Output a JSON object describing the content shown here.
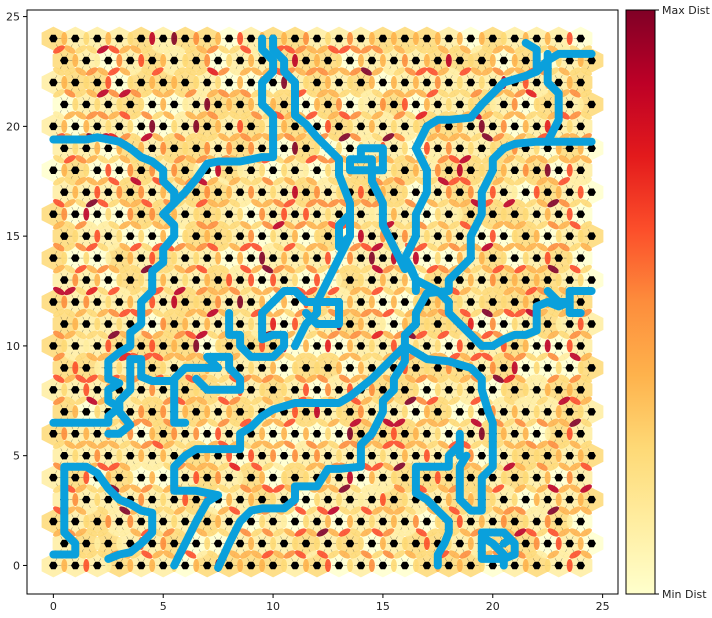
{
  "chart_data": {
    "type": "heatmap",
    "title": "",
    "xlabel": "",
    "ylabel": "",
    "xlim": [
      -1.2,
      25.7
    ],
    "ylim": [
      -1.3,
      25.3
    ],
    "xticks": [
      0,
      5,
      10,
      15,
      20,
      25
    ],
    "yticks": [
      0,
      5,
      10,
      15,
      20,
      25
    ],
    "grid": false,
    "colorbar": {
      "max_label": "Max Dist",
      "min_label": "Min Dist",
      "colormap": [
        "#ffffcc",
        "#ffeda0",
        "#fed976",
        "#feb24c",
        "#fd8d3c",
        "#fc4e2a",
        "#e31a1c",
        "#bd0026",
        "#800026"
      ]
    },
    "lattice": {
      "rows": 25,
      "cols": 26,
      "row_spacing": 1.0,
      "col_spacing": 1.0,
      "odd_row_offset": 0.5,
      "node_color": "#000000",
      "edge_color": "#222222"
    },
    "river_color": "#0aa0dc",
    "rivers": [
      [
        [
          0,
          19.4
        ],
        [
          1,
          19.4
        ],
        [
          1.5,
          19.4
        ],
        [
          2,
          19.5
        ],
        [
          2.5,
          19.4
        ],
        [
          3,
          19.3
        ],
        [
          3.5,
          19
        ],
        [
          4,
          18.6
        ],
        [
          4.5,
          18.4
        ],
        [
          5,
          18
        ],
        [
          5,
          17.5
        ],
        [
          5.5,
          17
        ],
        [
          5.5,
          16.5
        ],
        [
          5,
          16
        ],
        [
          5.5,
          15.5
        ],
        [
          5.5,
          15
        ],
        [
          5,
          14.4
        ],
        [
          5,
          13.8
        ],
        [
          4.5,
          13.4
        ],
        [
          4.5,
          12.5
        ],
        [
          4,
          12
        ],
        [
          4,
          11.5
        ],
        [
          4,
          11
        ],
        [
          3.5,
          10.6
        ],
        [
          3.5,
          10
        ],
        [
          3,
          9.7
        ],
        [
          2.5,
          9.3
        ],
        [
          2.5,
          8.5
        ],
        [
          3,
          8.3
        ],
        [
          2.5,
          8
        ],
        [
          2.5,
          7.5
        ],
        [
          3,
          7.2
        ],
        [
          2.5,
          6.8
        ],
        [
          2.5,
          6.5
        ],
        [
          1.5,
          6.5
        ],
        [
          1,
          6.5
        ],
        [
          0,
          6.5
        ]
      ],
      [
        [
          5.5,
          16.5
        ],
        [
          6,
          17
        ],
        [
          6.5,
          17.6
        ],
        [
          7,
          18.3
        ],
        [
          7.5,
          18.4
        ],
        [
          8.5,
          18.4
        ],
        [
          9.5,
          18.6
        ],
        [
          10,
          18.6
        ],
        [
          10,
          19
        ],
        [
          10,
          19.8
        ],
        [
          10,
          20.5
        ],
        [
          9.5,
          21
        ],
        [
          9.5,
          22
        ],
        [
          10,
          22.5
        ],
        [
          10,
          23
        ],
        [
          9.5,
          23.5
        ],
        [
          9.5,
          24
        ]
      ],
      [
        [
          2.5,
          6
        ],
        [
          3,
          6
        ],
        [
          3.5,
          6.4
        ],
        [
          3,
          7
        ],
        [
          3,
          7.5
        ],
        [
          3.5,
          8
        ],
        [
          3.5,
          8.6
        ],
        [
          3.5,
          9.4
        ],
        [
          4,
          9.4
        ],
        [
          4,
          8.6
        ],
        [
          4.5,
          8.4
        ],
        [
          5,
          8.4
        ],
        [
          5.5,
          8.4
        ],
        [
          5.5,
          7.5
        ],
        [
          5.5,
          7
        ],
        [
          5.5,
          6.5
        ],
        [
          6,
          6.5
        ]
      ],
      [
        [
          5.5,
          8.5
        ],
        [
          6,
          9
        ],
        [
          6.5,
          9
        ],
        [
          7,
          9
        ],
        [
          7.5,
          9
        ],
        [
          7,
          9.5
        ],
        [
          8,
          9.5
        ],
        [
          8,
          9
        ],
        [
          8.5,
          8.5
        ],
        [
          8.5,
          8
        ],
        [
          7.5,
          8
        ],
        [
          7,
          8
        ],
        [
          6.5,
          8.5
        ]
      ],
      [
        [
          0,
          0.5
        ],
        [
          1,
          0.5
        ],
        [
          1,
          1
        ],
        [
          0.5,
          1.5
        ],
        [
          0.5,
          2
        ],
        [
          0.5,
          3
        ],
        [
          0.5,
          3.5
        ],
        [
          0.5,
          4
        ],
        [
          0.5,
          4.5
        ],
        [
          1,
          4.5
        ],
        [
          1.5,
          4.5
        ],
        [
          2,
          4.2
        ],
        [
          2.5,
          3.5
        ],
        [
          3,
          3
        ],
        [
          3.5,
          2.8
        ],
        [
          4,
          2.5
        ],
        [
          4.5,
          2.4
        ],
        [
          4.5,
          1.5
        ],
        [
          4,
          1
        ],
        [
          3.5,
          0.6
        ],
        [
          3,
          0.5
        ],
        [
          2.5,
          0.3
        ]
      ],
      [
        [
          5.5,
          0
        ],
        [
          6,
          1
        ],
        [
          6.5,
          2
        ],
        [
          7,
          2.9
        ],
        [
          7.5,
          3.2
        ],
        [
          6.5,
          3.4
        ],
        [
          5.5,
          3.4
        ],
        [
          5.5,
          4
        ],
        [
          5.5,
          4.5
        ],
        [
          6,
          5
        ],
        [
          6.5,
          5.3
        ],
        [
          7.5,
          5.3
        ],
        [
          8.5,
          5.3
        ],
        [
          8.5,
          6
        ],
        [
          9,
          6.3
        ],
        [
          9.5,
          6.8
        ],
        [
          10,
          7.1
        ],
        [
          11,
          7.4
        ],
        [
          12,
          7.4
        ],
        [
          13,
          7.4
        ],
        [
          13.5,
          7.7
        ],
        [
          14,
          8.1
        ],
        [
          14.5,
          8.5
        ],
        [
          15,
          9
        ],
        [
          15.5,
          9.5
        ],
        [
          16,
          10
        ],
        [
          16,
          10.5
        ],
        [
          16.5,
          11
        ],
        [
          16.5,
          11.5
        ],
        [
          17,
          12.4
        ],
        [
          18,
          12.5
        ],
        [
          18,
          13
        ],
        [
          18.5,
          13.5
        ],
        [
          19,
          14
        ],
        [
          19,
          15
        ],
        [
          19.5,
          16
        ],
        [
          19.5,
          17
        ],
        [
          20,
          18
        ],
        [
          20,
          18.5
        ],
        [
          20.5,
          19
        ],
        [
          21,
          19.2
        ],
        [
          22,
          19.3
        ],
        [
          23,
          19.3
        ],
        [
          24,
          19.3
        ],
        [
          24.5,
          19.3
        ]
      ],
      [
        [
          7.5,
          -0.1
        ],
        [
          8,
          1
        ],
        [
          8.5,
          2
        ],
        [
          9,
          2.5
        ],
        [
          9.5,
          2.6
        ],
        [
          10,
          2.6
        ],
        [
          10.5,
          2.6
        ],
        [
          11,
          3
        ],
        [
          11,
          3.6
        ],
        [
          12,
          3.6
        ],
        [
          12.5,
          4.4
        ],
        [
          13,
          4.4
        ],
        [
          14,
          4.5
        ],
        [
          14,
          5
        ],
        [
          14,
          5.5
        ],
        [
          14.5,
          6
        ],
        [
          15,
          7
        ],
        [
          15,
          7.5
        ],
        [
          15.5,
          8
        ],
        [
          15.5,
          8.5
        ],
        [
          16,
          9.3
        ],
        [
          16,
          10
        ],
        [
          17,
          9.4
        ],
        [
          18,
          9.3
        ],
        [
          19,
          9
        ],
        [
          19.5,
          8.5
        ],
        [
          19.5,
          8
        ],
        [
          19.8,
          7
        ],
        [
          20,
          6.5
        ],
        [
          20,
          5.5
        ],
        [
          20,
          4.5
        ],
        [
          19.5,
          4
        ],
        [
          19.5,
          3
        ],
        [
          19.5,
          2.5
        ],
        [
          19,
          2.5
        ],
        [
          18.5,
          3
        ],
        [
          18.5,
          3.5
        ],
        [
          18.5,
          4.5
        ],
        [
          18.8,
          5
        ]
      ],
      [
        [
          11,
          10
        ],
        [
          11.5,
          11
        ],
        [
          12,
          11.5
        ],
        [
          12,
          12
        ],
        [
          13,
          12
        ],
        [
          13,
          11
        ],
        [
          12.5,
          11
        ],
        [
          12,
          11
        ],
        [
          11.5,
          11.5
        ]
      ],
      [
        [
          16.5,
          12.5
        ],
        [
          16.5,
          13
        ],
        [
          16.3,
          13.5
        ],
        [
          16,
          14
        ],
        [
          16.5,
          15
        ],
        [
          16.5,
          16
        ],
        [
          17,
          17
        ],
        [
          17,
          18
        ],
        [
          16.5,
          19
        ],
        [
          17,
          20
        ],
        [
          17.5,
          20.3
        ],
        [
          18,
          20.3
        ],
        [
          19,
          20.4
        ],
        [
          19.5,
          21
        ],
        [
          20,
          21.5
        ],
        [
          20.5,
          22
        ],
        [
          21.5,
          22.3
        ],
        [
          22,
          22.5
        ],
        [
          22.5,
          23
        ],
        [
          23,
          23.3
        ],
        [
          24,
          23.3
        ],
        [
          24.5,
          23.3
        ]
      ],
      [
        [
          21.5,
          23.8
        ],
        [
          22,
          23.5
        ],
        [
          22,
          22.5
        ]
      ],
      [
        [
          22.5,
          23.3
        ],
        [
          22.5,
          22
        ],
        [
          23,
          21.5
        ],
        [
          23,
          21
        ],
        [
          23,
          20.3
        ],
        [
          22.5,
          19.3
        ]
      ],
      [
        [
          16,
          13.5
        ],
        [
          15.5,
          14.5
        ],
        [
          15,
          15.5
        ],
        [
          15,
          16.5
        ],
        [
          14.5,
          17.5
        ],
        [
          14.5,
          18.5
        ],
        [
          14,
          18.5
        ],
        [
          13.5,
          18.5
        ],
        [
          13.5,
          18
        ],
        [
          14,
          18
        ],
        [
          15,
          18
        ],
        [
          15,
          19
        ],
        [
          14,
          19
        ],
        [
          14,
          18.5
        ]
      ],
      [
        [
          13,
          17.8
        ],
        [
          13,
          18.5
        ],
        [
          12.5,
          19
        ],
        [
          12,
          19.5
        ],
        [
          11.5,
          20.1
        ],
        [
          11,
          20.5
        ],
        [
          11,
          21
        ],
        [
          11,
          22
        ],
        [
          10.5,
          22.5
        ],
        [
          10.5,
          23
        ],
        [
          10,
          23.5
        ],
        [
          10,
          24
        ]
      ],
      [
        [
          13,
          17.8
        ],
        [
          13.5,
          16.5
        ],
        [
          13.5,
          15.5
        ],
        [
          13.5,
          15
        ],
        [
          13,
          14.5
        ],
        [
          13,
          15
        ],
        [
          13,
          15.5
        ],
        [
          13.5,
          16
        ],
        [
          13.5,
          15
        ]
      ],
      [
        [
          13.5,
          15
        ],
        [
          13,
          14
        ],
        [
          12.5,
          13
        ],
        [
          12,
          12
        ],
        [
          11.5,
          12
        ],
        [
          11,
          12.5
        ],
        [
          10.5,
          12.5
        ],
        [
          10,
          12
        ],
        [
          9.5,
          11.5
        ],
        [
          9.5,
          11
        ],
        [
          9.5,
          10.5
        ],
        [
          9.5,
          10.3
        ],
        [
          10,
          10.5
        ],
        [
          10.5,
          10.5
        ],
        [
          10.5,
          10
        ],
        [
          10,
          9.5
        ],
        [
          9,
          9.5
        ],
        [
          8.5,
          10
        ],
        [
          8.5,
          10.5
        ],
        [
          8,
          10.5
        ],
        [
          8,
          11
        ],
        [
          8,
          11.5
        ]
      ],
      [
        [
          16,
          14
        ],
        [
          16.5,
          13
        ],
        [
          17.5,
          12.5
        ],
        [
          18,
          12
        ],
        [
          18,
          11.5
        ],
        [
          18.5,
          11
        ],
        [
          19,
          10.5
        ],
        [
          19.5,
          10
        ],
        [
          20,
          10
        ],
        [
          20.5,
          10.3
        ],
        [
          21,
          10.5
        ],
        [
          21.5,
          10.5
        ],
        [
          22,
          10.7
        ],
        [
          22,
          11.5
        ],
        [
          22,
          11.8
        ],
        [
          22.5,
          12
        ],
        [
          23,
          11.8
        ],
        [
          23.5,
          12
        ],
        [
          23.5,
          12.5
        ],
        [
          24,
          12.5
        ],
        [
          24.5,
          12.5
        ]
      ],
      [
        [
          22.5,
          12.5
        ],
        [
          23,
          12
        ],
        [
          23.5,
          12
        ],
        [
          23.5,
          11.5
        ],
        [
          24,
          11.5
        ]
      ],
      [
        [
          16.5,
          3.3
        ],
        [
          16.5,
          4
        ],
        [
          16.5,
          4.5
        ],
        [
          17,
          4.5
        ],
        [
          17.5,
          4.5
        ],
        [
          18,
          4.5
        ],
        [
          18,
          5
        ],
        [
          18.5,
          5.5
        ],
        [
          18.5,
          6
        ],
        [
          18.5,
          5.5
        ],
        [
          18.5,
          5
        ]
      ],
      [
        [
          16.5,
          3.3
        ],
        [
          17,
          3
        ],
        [
          17.5,
          2.5
        ],
        [
          18,
          2
        ],
        [
          18,
          1.5
        ],
        [
          17.8,
          1
        ],
        [
          17.5,
          0.5
        ],
        [
          17.5,
          0
        ]
      ],
      [
        [
          19.5,
          1.5
        ],
        [
          20,
          1.5
        ],
        [
          20.5,
          1.5
        ],
        [
          21,
          1
        ],
        [
          21,
          0.5
        ],
        [
          20.5,
          0.3
        ],
        [
          20,
          0.3
        ],
        [
          19.5,
          0.3
        ],
        [
          19.5,
          1
        ],
        [
          19.5,
          1.3
        ],
        [
          20,
          1
        ],
        [
          20.5,
          0.5
        ],
        [
          20.5,
          0
        ]
      ],
      [
        [
          20.5,
          1.5
        ],
        [
          20.8,
          1.2
        ],
        [
          20.5,
          1
        ]
      ]
    ]
  }
}
